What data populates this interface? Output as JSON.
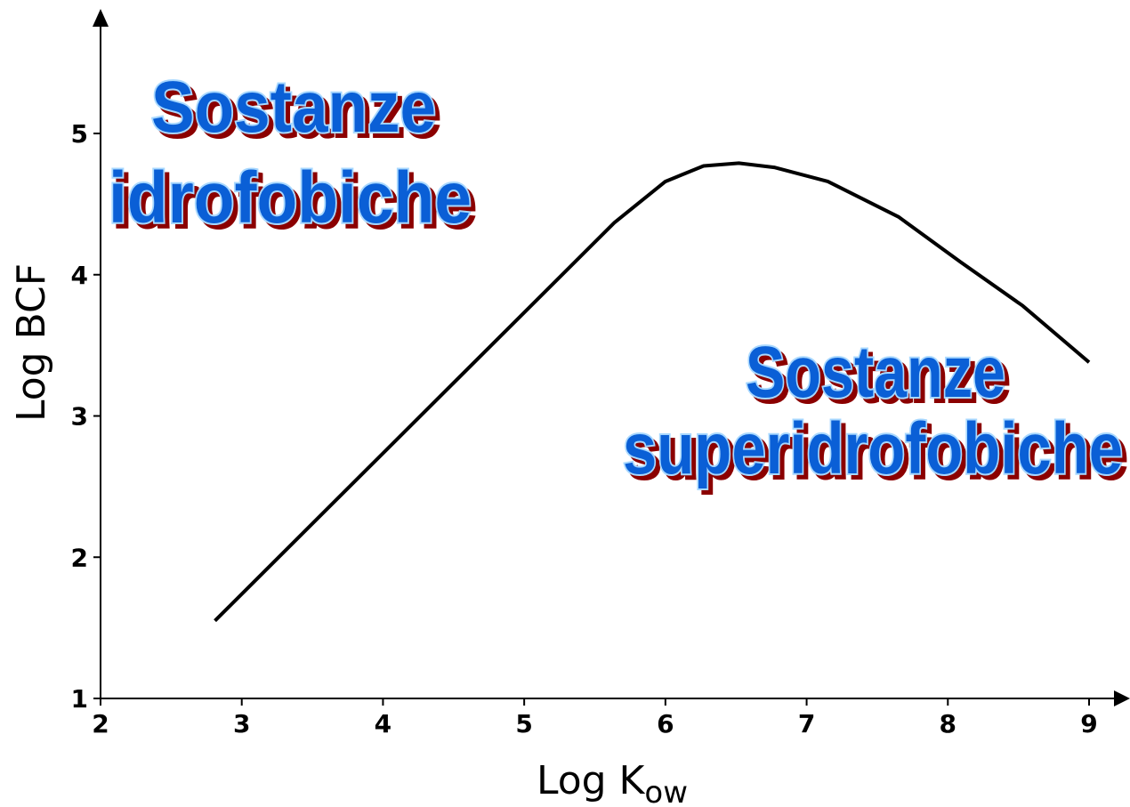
{
  "chart_data": {
    "type": "line",
    "x_label": "Log K",
    "x_label_subscript": "ow",
    "y_label": "Log BCF",
    "x": [
      2.81,
      5.64,
      6.0,
      6.27,
      6.52,
      6.77,
      7.15,
      7.65,
      8.09,
      8.53,
      9.0
    ],
    "series": [
      {
        "color": "#000000",
        "values": [
          1.55,
          4.37,
          4.66,
          4.77,
          4.79,
          4.76,
          4.66,
          4.41,
          4.09,
          3.78,
          3.38
        ]
      }
    ],
    "xlim": [
      2,
      9
    ],
    "xticks": [
      2,
      3,
      4,
      5,
      6,
      7,
      8,
      9
    ],
    "ylim": [
      1,
      5
    ],
    "yticks": [
      1,
      2,
      3,
      4,
      5
    ],
    "annotations": [
      [
        "Sostanze",
        "idrofobiche"
      ],
      [
        "Sostanze",
        "superidrofobiche"
      ]
    ]
  }
}
